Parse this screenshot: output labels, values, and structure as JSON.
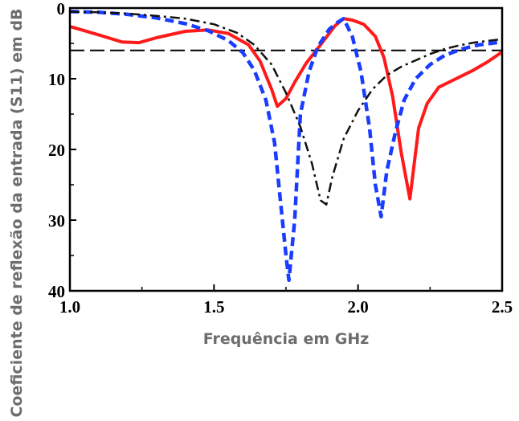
{
  "chart_data": {
    "type": "line",
    "xlabel": "Frequência em GHz",
    "ylabel": "Coeficiente de reflexão da entrada (S11) em dB",
    "xlim": [
      1.0,
      2.5
    ],
    "ylim": [
      0,
      40
    ],
    "y_inverted": true,
    "grid": false,
    "legend": "none",
    "x_ticks": [
      "1.0",
      "1.5",
      "2.0",
      "2.5"
    ],
    "y_ticks": [
      "0",
      "10",
      "20",
      "30",
      "40"
    ],
    "reference_line": {
      "y": 6
    },
    "series": [
      {
        "color": "#ff1a1a",
        "style": "solid",
        "points": [
          [
            1.0,
            2.6
          ],
          [
            1.1,
            3.8
          ],
          [
            1.18,
            4.8
          ],
          [
            1.24,
            4.9
          ],
          [
            1.3,
            4.2
          ],
          [
            1.4,
            3.3
          ],
          [
            1.48,
            3.1
          ],
          [
            1.55,
            3.6
          ],
          [
            1.62,
            5.2
          ],
          [
            1.66,
            7.5
          ],
          [
            1.7,
            11.5
          ],
          [
            1.72,
            13.9
          ],
          [
            1.75,
            12.8
          ],
          [
            1.78,
            10.5
          ],
          [
            1.82,
            7.8
          ],
          [
            1.87,
            5.2
          ],
          [
            1.92,
            2.5
          ],
          [
            1.95,
            1.5
          ],
          [
            1.98,
            1.7
          ],
          [
            2.02,
            2.3
          ],
          [
            2.06,
            4.0
          ],
          [
            2.09,
            7.0
          ],
          [
            2.12,
            12.5
          ],
          [
            2.15,
            20.5
          ],
          [
            2.18,
            27.0
          ],
          [
            2.21,
            17.0
          ],
          [
            2.24,
            13.5
          ],
          [
            2.28,
            11.2
          ],
          [
            2.34,
            10.0
          ],
          [
            2.4,
            8.8
          ],
          [
            2.45,
            7.6
          ],
          [
            2.5,
            6.2
          ]
        ]
      },
      {
        "color": "#1a3cff",
        "style": "dashed",
        "points": [
          [
            1.0,
            0.5
          ],
          [
            1.1,
            0.6
          ],
          [
            1.2,
            0.9
          ],
          [
            1.3,
            1.4
          ],
          [
            1.4,
            2.2
          ],
          [
            1.48,
            3.2
          ],
          [
            1.55,
            4.6
          ],
          [
            1.6,
            6.3
          ],
          [
            1.64,
            8.8
          ],
          [
            1.68,
            13.0
          ],
          [
            1.71,
            19.0
          ],
          [
            1.73,
            27.0
          ],
          [
            1.75,
            35.0
          ],
          [
            1.76,
            38.5
          ],
          [
            1.78,
            30.0
          ],
          [
            1.8,
            15.0
          ],
          [
            1.83,
            9.0
          ],
          [
            1.86,
            5.5
          ],
          [
            1.9,
            3.0
          ],
          [
            1.93,
            2.0
          ],
          [
            1.95,
            1.5
          ],
          [
            1.98,
            4.0
          ],
          [
            2.01,
            9.0
          ],
          [
            2.04,
            17.0
          ],
          [
            2.06,
            25.0
          ],
          [
            2.08,
            29.5
          ],
          [
            2.1,
            23.0
          ],
          [
            2.13,
            17.5
          ],
          [
            2.16,
            13.0
          ],
          [
            2.2,
            10.0
          ],
          [
            2.25,
            8.0
          ],
          [
            2.3,
            6.7
          ],
          [
            2.36,
            5.8
          ],
          [
            2.42,
            5.2
          ],
          [
            2.5,
            4.8
          ]
        ]
      },
      {
        "color": "#111111",
        "style": "dashdot",
        "points": [
          [
            1.0,
            0.5
          ],
          [
            1.1,
            0.6
          ],
          [
            1.2,
            0.8
          ],
          [
            1.3,
            1.1
          ],
          [
            1.4,
            1.5
          ],
          [
            1.5,
            2.3
          ],
          [
            1.58,
            3.5
          ],
          [
            1.64,
            5.2
          ],
          [
            1.7,
            8.0
          ],
          [
            1.75,
            12.0
          ],
          [
            1.8,
            16.8
          ],
          [
            1.84,
            22.0
          ],
          [
            1.87,
            27.2
          ],
          [
            1.89,
            27.8
          ],
          [
            1.91,
            24.0
          ],
          [
            1.95,
            18.5
          ],
          [
            2.0,
            14.5
          ],
          [
            2.05,
            11.5
          ],
          [
            2.1,
            9.5
          ],
          [
            2.15,
            8.3
          ],
          [
            2.2,
            7.4
          ],
          [
            2.25,
            6.5
          ],
          [
            2.3,
            5.8
          ],
          [
            2.35,
            5.3
          ],
          [
            2.4,
            4.9
          ],
          [
            2.5,
            4.4
          ]
        ]
      }
    ]
  }
}
